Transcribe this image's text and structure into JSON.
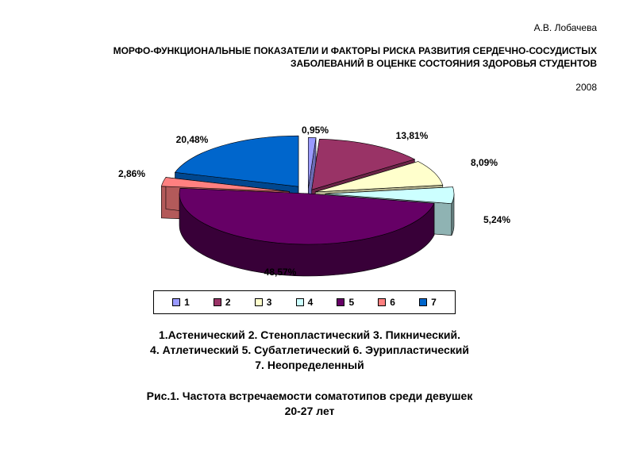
{
  "header": {
    "author": "А.В. Лобачева",
    "title_line1": "МОРФО-ФУНКЦИОНАЛЬНЫЕ  ПОКАЗАТЕЛИ  И ФАКТОРЫ РИСКА РАЗВИТИЯ СЕРДЕЧНО-СОСУДИСТЫХ",
    "title_line2": "ЗАБОЛЕВАНИЙ  В ОЦЕНКЕ СОСТОЯНИЯ ЗДОРОВЬЯ СТУДЕНТОВ",
    "year": "2008"
  },
  "chart_data": {
    "type": "pie",
    "style": "3d-exploded",
    "categories": [
      "1",
      "2",
      "3",
      "4",
      "5",
      "6",
      "7"
    ],
    "values": [
      0.95,
      13.81,
      8.09,
      5.24,
      48.57,
      2.86,
      20.48
    ],
    "data_labels": [
      "0,95%",
      "13,81%",
      "8,09%",
      "5,24%",
      "48,57%",
      "2,86%",
      "20,48%"
    ],
    "colors": [
      "#9999FF",
      "#993366",
      "#FFFFCC",
      "#CCFFFF",
      "#660066",
      "#FF8080",
      "#0066CC"
    ],
    "legend_position": "bottom",
    "legend": [
      "1",
      "2",
      "3",
      "4",
      "5",
      "6",
      "7"
    ]
  },
  "caption": {
    "line1": "1.Астенический 2. Стенопластический 3. Пикнический.",
    "line2": "4. Атлетический 5. Субатлетический 6. Эурипластический",
    "line3": "7. Неопределенный",
    "figure_line1": "Рис.1. Частота встречаемости соматотипов среди девушек",
    "figure_line2": "20-27 лет"
  }
}
